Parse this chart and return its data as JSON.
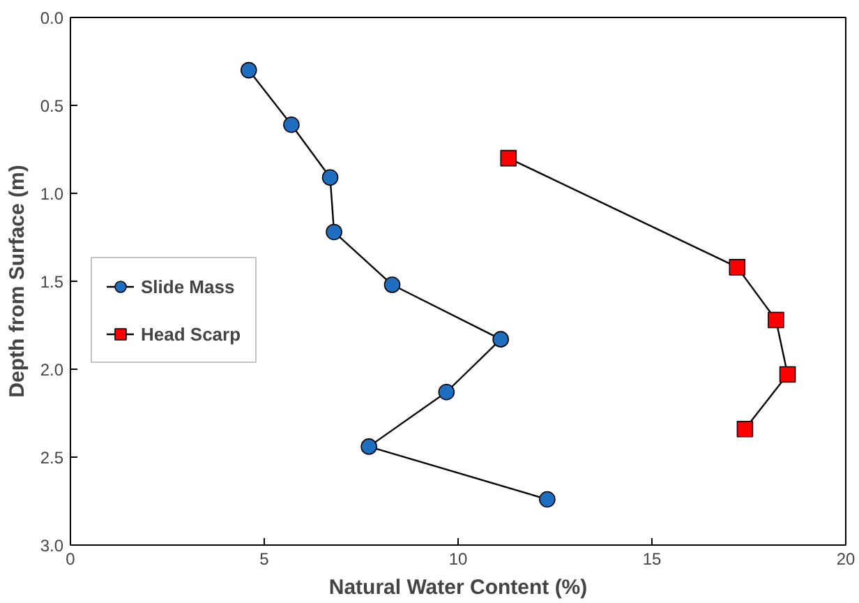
{
  "chart_data": {
    "type": "line",
    "xlabel": "Natural Water Content (%)",
    "ylabel": "Depth from Surface (m)",
    "xlim": [
      0,
      20
    ],
    "xticks": [
      0,
      5,
      10,
      15,
      20
    ],
    "ylim": [
      3.0,
      0.0
    ],
    "yticks": [
      {
        "value": 0,
        "label": "0.0"
      },
      {
        "value": 0.5,
        "label": "0.5"
      },
      {
        "value": 1,
        "label": "1.0"
      },
      {
        "value": 1.5,
        "label": "1.5"
      },
      {
        "value": 2,
        "label": "2.0"
      },
      {
        "value": 2.5,
        "label": "2.5"
      },
      {
        "value": 3,
        "label": "3.0"
      }
    ],
    "grid": false,
    "legend": "left",
    "series": [
      {
        "name": "Slide Mass",
        "color": "#1f6fc0",
        "marker": "circle",
        "x": [
          4.6,
          5.7,
          6.7,
          6.8,
          8.3,
          11.1,
          9.7,
          7.7,
          12.3
        ],
        "values": [
          0.3,
          0.61,
          0.91,
          1.22,
          1.52,
          1.83,
          2.13,
          2.44,
          2.74
        ]
      },
      {
        "name": "Head Scarp",
        "color": "#ff0000",
        "marker": "square",
        "x": [
          11.3,
          17.2,
          18.2,
          18.5,
          17.4
        ],
        "values": [
          0.8,
          1.42,
          1.72,
          2.03,
          2.34
        ]
      }
    ]
  }
}
